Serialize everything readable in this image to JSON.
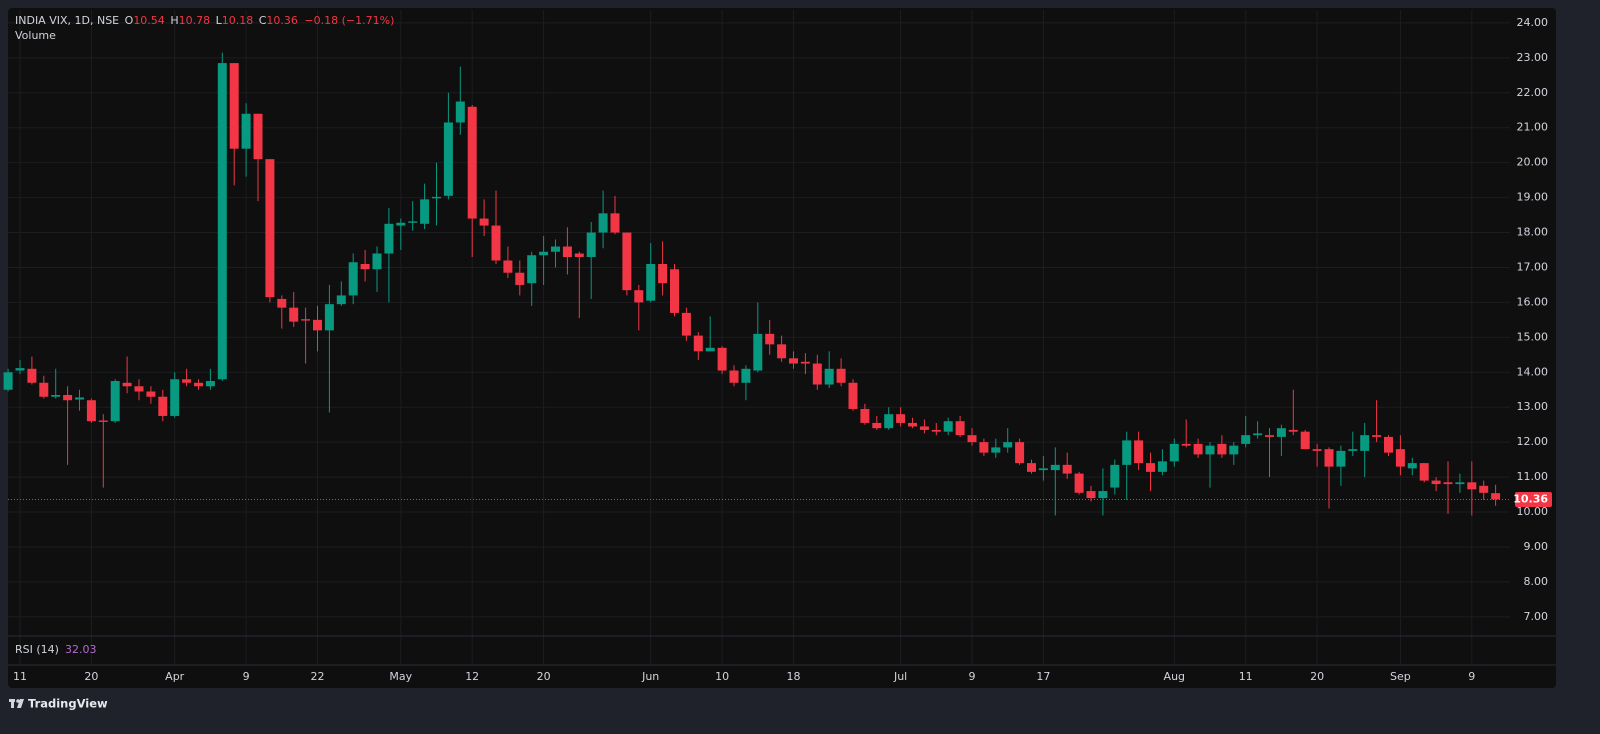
{
  "header": {
    "symbol": "INDIA VIX, 1D, NSE",
    "o": "O",
    "h": "H",
    "l": "L",
    "c": "C",
    "change": "−0.18 (−1.71%)",
    "volume": "Volume"
  },
  "rsi": {
    "label": "RSI (14)",
    "value": 32.03
  },
  "footer": {
    "brand": "TradingView"
  },
  "chart_data": {
    "type": "candlestick",
    "up_color": "#089981",
    "down_color": "#f23645",
    "grid": true,
    "price_line": true,
    "ylim": [
      6.48,
      24.37
    ],
    "yticks": [
      {
        "value": 7,
        "label": "7.00"
      },
      {
        "value": 8,
        "label": "8.00"
      },
      {
        "value": 9,
        "label": "9.00"
      },
      {
        "value": 10,
        "label": "10.00"
      },
      {
        "value": 11,
        "label": "11.00"
      },
      {
        "value": 12,
        "label": "12.00"
      },
      {
        "value": 13,
        "label": "13.00"
      },
      {
        "value": 14,
        "label": "14.00"
      },
      {
        "value": 15,
        "label": "15.00"
      },
      {
        "value": 16,
        "label": "16.00"
      },
      {
        "value": 17,
        "label": "17.00"
      },
      {
        "value": 18,
        "label": "18.00"
      },
      {
        "value": 19,
        "label": "19.00"
      },
      {
        "value": 20,
        "label": "20.00"
      },
      {
        "value": 21,
        "label": "21.00"
      },
      {
        "value": 22,
        "label": "22.00"
      },
      {
        "value": 23,
        "label": "23.00"
      },
      {
        "value": 24,
        "label": "24.00"
      }
    ],
    "categories": [
      null,
      "11",
      null,
      null,
      null,
      null,
      null,
      "20",
      null,
      null,
      null,
      null,
      null,
      null,
      "Apr",
      null,
      null,
      null,
      null,
      null,
      "9",
      null,
      null,
      null,
      null,
      null,
      "22",
      null,
      null,
      null,
      null,
      null,
      null,
      "May",
      null,
      null,
      null,
      null,
      null,
      "12",
      null,
      null,
      null,
      null,
      null,
      "20",
      null,
      null,
      null,
      null,
      null,
      null,
      null,
      null,
      "Jun",
      null,
      null,
      null,
      null,
      null,
      "10",
      null,
      null,
      null,
      null,
      null,
      "18",
      null,
      null,
      null,
      null,
      null,
      null,
      null,
      null,
      "Jul",
      null,
      null,
      null,
      null,
      null,
      "9",
      null,
      null,
      null,
      null,
      null,
      "17",
      null,
      null,
      null,
      null,
      null,
      null,
      null,
      null,
      null,
      null,
      "Aug",
      null,
      null,
      null,
      null,
      null,
      "11",
      null,
      null,
      null,
      null,
      null,
      "20",
      null,
      null,
      null,
      null,
      null,
      null,
      "Sep",
      null,
      null,
      null,
      null,
      null,
      "9",
      null,
      null
    ],
    "open": [
      13.5,
      14.05,
      14.1,
      13.7,
      13.3,
      13.35,
      13.22,
      13.2,
      12.62,
      12.6,
      13.7,
      13.6,
      13.45,
      13.3,
      12.75,
      13.8,
      13.7,
      13.6,
      13.8,
      22.85,
      20.4,
      21.4,
      20.1,
      16.1,
      15.85,
      15.52,
      15.5,
      15.2,
      15.95,
      16.2,
      17.1,
      16.95,
      17.4,
      18.2,
      18.28,
      18.25,
      18.98,
      19.05,
      21.15,
      21.6,
      18.4,
      18.2,
      17.2,
      16.85,
      16.55,
      17.35,
      17.45,
      17.6,
      17.4,
      17.3,
      18.0,
      18.55,
      18.0,
      16.35,
      16.05,
      17.1,
      16.95,
      15.7,
      15.05,
      14.6,
      14.7,
      14.05,
      13.7,
      14.05,
      15.1,
      14.8,
      14.4,
      14.3,
      14.25,
      13.65,
      14.1,
      13.7,
      12.95,
      12.55,
      12.4,
      12.8,
      12.55,
      12.45,
      12.35,
      12.3,
      12.6,
      12.2,
      12.0,
      11.7,
      11.85,
      12.0,
      11.4,
      11.2,
      11.2,
      11.35,
      11.1,
      10.6,
      10.4,
      10.7,
      11.35,
      12.05,
      11.4,
      11.15,
      11.45,
      11.95,
      11.95,
      11.65,
      11.95,
      11.65,
      11.95,
      12.2,
      12.2,
      12.15,
      12.35,
      12.3,
      11.8,
      11.8,
      11.3,
      11.75,
      11.75,
      12.2,
      12.15,
      11.8,
      11.25,
      11.4,
      10.9,
      10.85,
      10.8,
      10.85,
      10.75,
      10.54
    ],
    "high": [
      14.1,
      14.35,
      14.45,
      13.9,
      14.1,
      13.6,
      13.5,
      13.25,
      12.8,
      13.8,
      14.45,
      13.8,
      13.6,
      13.5,
      14.0,
      14.1,
      13.8,
      14.1,
      23.15,
      22.85,
      21.7,
      21.4,
      20.1,
      16.2,
      16.3,
      15.85,
      15.9,
      16.5,
      16.6,
      17.4,
      17.5,
      17.6,
      18.7,
      18.4,
      18.9,
      19.4,
      20.0,
      22.0,
      22.75,
      21.65,
      18.95,
      19.2,
      17.6,
      17.2,
      17.45,
      17.9,
      17.8,
      18.15,
      17.45,
      18.3,
      19.2,
      19.05,
      18.0,
      16.5,
      17.7,
      17.75,
      17.1,
      15.85,
      15.15,
      15.6,
      14.75,
      14.2,
      14.2,
      16.0,
      15.5,
      15.05,
      14.6,
      14.55,
      14.5,
      14.6,
      14.4,
      13.8,
      13.1,
      12.75,
      13.0,
      13.0,
      12.7,
      12.65,
      12.55,
      12.7,
      12.75,
      12.4,
      12.1,
      12.1,
      12.4,
      12.1,
      11.5,
      11.6,
      11.85,
      11.7,
      11.15,
      10.75,
      11.25,
      11.5,
      12.3,
      12.3,
      11.7,
      11.8,
      12.1,
      12.65,
      12.1,
      12.0,
      12.2,
      12.0,
      12.75,
      12.6,
      12.4,
      12.5,
      13.5,
      12.35,
      11.95,
      11.85,
      11.9,
      12.3,
      12.55,
      13.2,
      12.2,
      12.2,
      11.55,
      11.4,
      11.0,
      11.45,
      11.1,
      11.45,
      10.9,
      10.78
    ],
    "low": [
      13.45,
      13.95,
      13.65,
      13.25,
      13.25,
      11.35,
      12.9,
      12.55,
      10.7,
      12.55,
      13.4,
      13.2,
      13.1,
      12.6,
      12.7,
      13.6,
      13.5,
      13.5,
      13.75,
      19.35,
      19.6,
      18.9,
      16.0,
      15.25,
      15.3,
      14.25,
      14.6,
      12.85,
      15.9,
      15.95,
      16.6,
      16.3,
      16.0,
      17.5,
      18.05,
      18.1,
      18.2,
      18.95,
      20.8,
      17.3,
      17.9,
      17.1,
      16.7,
      16.2,
      15.9,
      16.5,
      17.0,
      16.8,
      15.55,
      16.1,
      17.55,
      17.95,
      16.2,
      15.2,
      16.0,
      16.2,
      15.6,
      14.9,
      14.35,
      14.6,
      13.95,
      13.6,
      13.2,
      14.0,
      14.5,
      14.3,
      14.1,
      13.95,
      13.5,
      13.55,
      13.6,
      12.9,
      12.5,
      12.35,
      12.35,
      12.45,
      12.4,
      12.25,
      12.2,
      12.2,
      12.15,
      11.9,
      11.6,
      11.55,
      11.7,
      11.35,
      11.1,
      10.9,
      9.9,
      10.95,
      10.5,
      10.3,
      9.9,
      10.5,
      10.35,
      11.2,
      10.6,
      11.05,
      11.3,
      11.85,
      11.55,
      10.7,
      11.55,
      11.35,
      11.85,
      12.1,
      11.0,
      11.6,
      12.2,
      11.8,
      11.3,
      10.1,
      10.75,
      11.6,
      11.0,
      12.0,
      11.6,
      11.05,
      11.05,
      10.85,
      10.6,
      9.95,
      10.55,
      9.9,
      10.35,
      10.18
    ],
    "close": [
      14.0,
      14.12,
      13.7,
      13.3,
      13.35,
      13.2,
      13.28,
      12.6,
      12.58,
      13.75,
      13.6,
      13.45,
      13.3,
      12.75,
      13.8,
      13.7,
      13.6,
      13.75,
      22.85,
      20.4,
      21.4,
      20.1,
      16.15,
      15.85,
      15.45,
      15.48,
      15.2,
      15.95,
      16.2,
      17.15,
      16.95,
      17.4,
      18.25,
      18.28,
      18.32,
      18.95,
      19.02,
      21.15,
      21.75,
      18.4,
      18.2,
      17.2,
      16.85,
      16.5,
      17.35,
      17.45,
      17.6,
      17.3,
      17.3,
      18.0,
      18.55,
      18.0,
      16.35,
      16.0,
      17.1,
      16.55,
      15.7,
      15.05,
      14.6,
      14.7,
      14.05,
      13.7,
      14.1,
      15.1,
      14.8,
      14.4,
      14.25,
      14.25,
      13.65,
      14.1,
      13.7,
      12.95,
      12.55,
      12.4,
      12.8,
      12.55,
      12.45,
      12.35,
      12.3,
      12.6,
      12.2,
      12.0,
      11.7,
      11.85,
      12.0,
      11.4,
      11.15,
      11.25,
      11.35,
      11.1,
      10.55,
      10.4,
      10.6,
      11.35,
      12.05,
      11.4,
      11.15,
      11.45,
      11.95,
      11.9,
      11.65,
      11.9,
      11.65,
      11.9,
      12.2,
      12.25,
      12.15,
      12.4,
      12.3,
      11.8,
      11.75,
      11.3,
      11.75,
      11.8,
      12.2,
      12.15,
      11.7,
      11.3,
      11.4,
      10.9,
      10.8,
      10.8,
      10.85,
      10.65,
      10.55,
      10.36
    ]
  }
}
